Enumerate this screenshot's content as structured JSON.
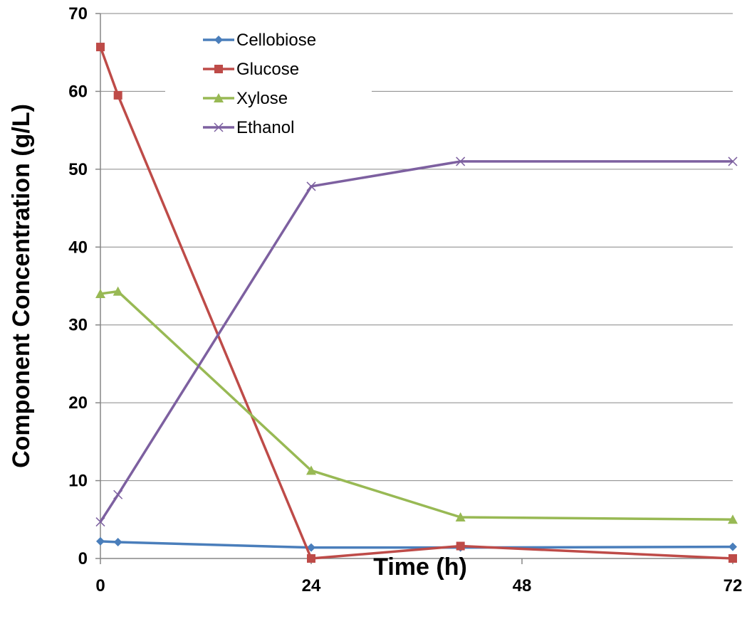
{
  "chart_data": {
    "type": "line",
    "xlabel": "Time (h)",
    "ylabel": "Component Concentration (g/L)",
    "xlim": [
      0,
      72
    ],
    "ylim": [
      0,
      70
    ],
    "x_ticks": [
      0,
      24,
      48,
      72
    ],
    "y_ticks": [
      0,
      10,
      20,
      30,
      40,
      50,
      60,
      70
    ],
    "grid": "horizontal",
    "legend_position": "top-left",
    "series": [
      {
        "name": "Cellobiose",
        "color": "#4a7ebb",
        "marker": "diamond",
        "x": [
          0,
          2,
          24,
          41,
          72
        ],
        "y": [
          2.2,
          2.1,
          1.4,
          1.4,
          1.5
        ]
      },
      {
        "name": "Glucose",
        "color": "#be4b48",
        "marker": "square",
        "x": [
          0,
          2,
          24,
          41,
          72
        ],
        "y": [
          65.7,
          59.5,
          0.0,
          1.6,
          0.0
        ]
      },
      {
        "name": "Xylose",
        "color": "#98b954",
        "marker": "triangle",
        "x": [
          0,
          2,
          24,
          41,
          72
        ],
        "y": [
          34.0,
          34.3,
          11.3,
          5.3,
          5.0
        ]
      },
      {
        "name": "Ethanol",
        "color": "#7d60a0",
        "marker": "x",
        "x": [
          0,
          2,
          24,
          41,
          72
        ],
        "y": [
          4.7,
          8.2,
          47.8,
          51.0,
          51.0
        ]
      }
    ]
  }
}
